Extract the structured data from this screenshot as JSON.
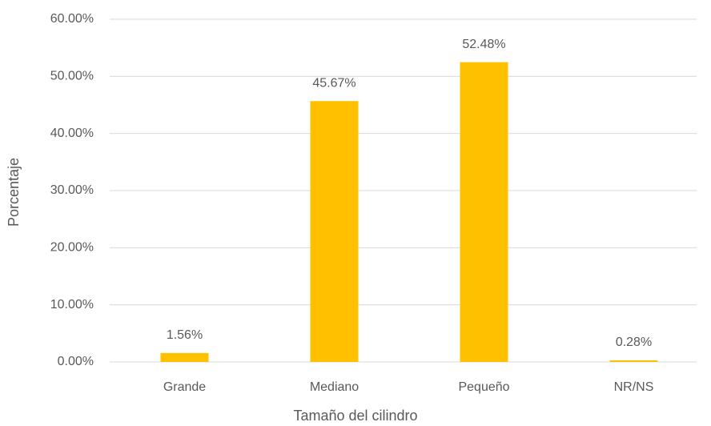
{
  "chart_data": {
    "type": "bar",
    "x_label": "Tamaño del cilindro",
    "y_label": "Porcentaje",
    "categories": [
      "Grande",
      "Mediano",
      "Pequeño",
      "NR/NS"
    ],
    "values": [
      1.56,
      45.67,
      52.48,
      0.28
    ],
    "value_labels": [
      "1.56%",
      "45.67%",
      "52.48%",
      "0.28%"
    ],
    "color": "#ffc000",
    "ylim": [
      0,
      60
    ],
    "yticks": [
      {
        "value": 0,
        "label": "0.00%"
      },
      {
        "value": 10,
        "label": "10.00%"
      },
      {
        "value": 20,
        "label": "20.00%"
      },
      {
        "value": 30,
        "label": "30.00%"
      },
      {
        "value": 40,
        "label": "40.00%"
      },
      {
        "value": 50,
        "label": "50.00%"
      },
      {
        "value": 60,
        "label": "60.00%"
      }
    ],
    "grid": true
  }
}
